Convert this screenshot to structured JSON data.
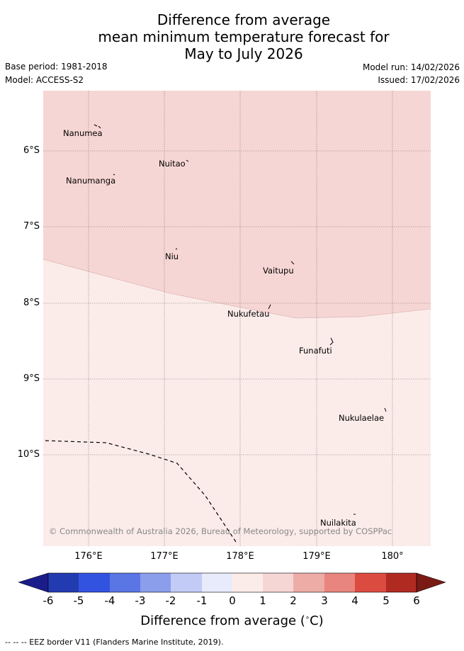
{
  "header": {
    "title_line1": "Difference from average",
    "title_line2": "mean minimum temperature forecast for",
    "title_line3": "May to July 2026",
    "base_period": "Base period: 1981-2018",
    "model": "Model: ACCESS-S2",
    "model_run": "Model run: 14/02/2026",
    "issued": "Issued: 17/02/2026"
  },
  "map": {
    "lat_labels": [
      "6°S",
      "7°S",
      "8°S",
      "9°S",
      "10°S"
    ],
    "lon_labels": [
      "176°E",
      "177°E",
      "178°E",
      "179°E",
      "180°"
    ],
    "islands": [
      "Nanumea",
      "Nuitao",
      "Nanumanga",
      "Niu",
      "Vaitupu",
      "Nukufetau",
      "Funafuti",
      "Nukulaelae",
      "Nuilakita"
    ],
    "copyright": "© Commonwealth of Australia 2026, Bureau of Meteorology, supported by COSPPac",
    "colors": {
      "anomaly_1_to_2": "#f6d6d4",
      "anomaly_0_to_1": "#fbece9"
    }
  },
  "colorbar": {
    "ticks": [
      "-6",
      "-5",
      "-4",
      "-3",
      "-2",
      "-1",
      "0",
      "1",
      "2",
      "3",
      "4",
      "5",
      "6"
    ],
    "colors": [
      "#1a1c8a",
      "#233bb0",
      "#3253e0",
      "#5a75e4",
      "#8a9eec",
      "#c2cbf5",
      "#e8ebfb",
      "#fbece9",
      "#f6d6d4",
      "#eeaca6",
      "#e8857e",
      "#dc4b40",
      "#b02a22",
      "#7a1a14"
    ],
    "title": "Difference from average (",
    "degree": "∘",
    "unit": "C)"
  },
  "footer": {
    "legend": "--  --  -- EEZ border V11 (Flanders Marine Institute, 2019)."
  }
}
